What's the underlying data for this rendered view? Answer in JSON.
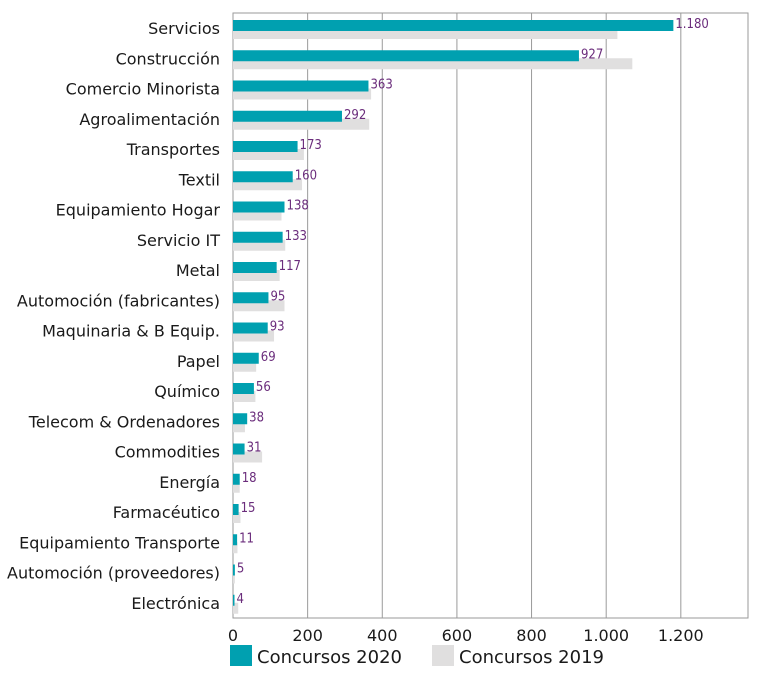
{
  "chart_data": {
    "type": "bar",
    "orientation": "horizontal",
    "categories": [
      "Servicios",
      "Construcción",
      "Comercio Minorista",
      "Agroalimentación",
      "Transportes",
      "Textil",
      "Equipamiento Hogar",
      "Servicio IT",
      "Metal",
      "Automoción (fabricantes)",
      "Maquinaria & B Equip.",
      "Papel",
      "Químico",
      "Telecom & Ordenadores",
      "Commodities",
      "Energía",
      "Farmacéutico",
      "Equipamiento Transporte",
      "Automoción (proveedores)",
      "Electrónica"
    ],
    "series": [
      {
        "name": "Concursos 2020",
        "color": "#00a0b0",
        "values": [
          1180,
          927,
          363,
          292,
          173,
          160,
          138,
          133,
          117,
          95,
          93,
          69,
          56,
          38,
          31,
          18,
          15,
          11,
          5,
          4
        ],
        "labels": [
          "1.180",
          "927",
          "363",
          "292",
          "173",
          "160",
          "138",
          "133",
          "117",
          "95",
          "93",
          "69",
          "56",
          "38",
          "31",
          "18",
          "15",
          "11",
          "5",
          "4"
        ]
      },
      {
        "name": "Concursos 2019",
        "color": "#e0dfdf",
        "values": [
          1030,
          1070,
          370,
          365,
          190,
          185,
          130,
          140,
          125,
          138,
          110,
          62,
          60,
          32,
          78,
          18,
          20,
          12,
          5,
          14
        ]
      }
    ],
    "xlim": [
      0,
      1380
    ],
    "xticks": [
      0,
      200,
      400,
      600,
      800,
      1000,
      1200
    ],
    "xtick_labels": [
      "0",
      "200",
      "400",
      "600",
      "800",
      "1.000",
      "1.200"
    ],
    "grid": "vertical",
    "legend": "bottom"
  }
}
